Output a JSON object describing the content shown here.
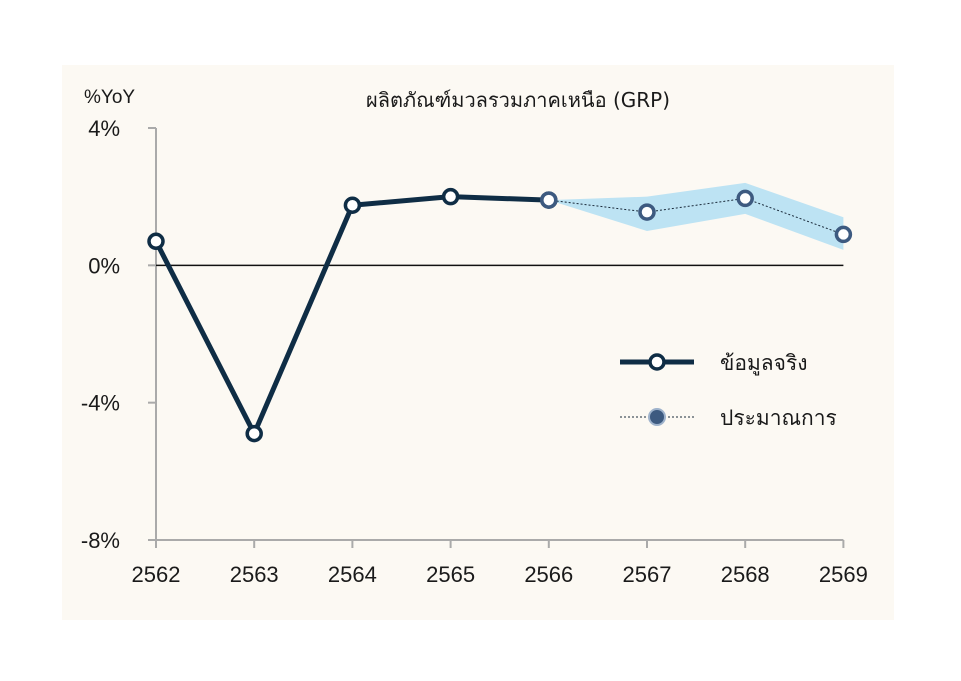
{
  "chart_data": {
    "type": "line",
    "title": "ผลิตภัณฑ์มวลรวมภาคเหนือ (GRP)",
    "ylabel": "%YoY",
    "xlabel": "",
    "x": [
      "2562",
      "2563",
      "2564",
      "2565",
      "2566",
      "2567",
      "2568",
      "2569"
    ],
    "ylim": [
      -8,
      4
    ],
    "yticks": [
      4,
      0,
      -4,
      -8
    ],
    "ytick_labels": [
      "4%",
      "0%",
      "-4%",
      "-8%"
    ],
    "grid": false,
    "legend_position": "right",
    "series": [
      {
        "name": "ข้อมูลจริง",
        "x": [
          "2562",
          "2563",
          "2564",
          "2565",
          "2566"
        ],
        "values": [
          0.7,
          -4.9,
          1.75,
          2.0,
          1.9
        ],
        "style": "solid-thick",
        "color": "#0f2d45"
      },
      {
        "name": "ประมาณการ",
        "x": [
          "2566",
          "2567",
          "2568",
          "2569"
        ],
        "values": [
          1.9,
          1.55,
          1.95,
          0.9
        ],
        "style": "dotted",
        "color": "#3d5a80",
        "band_low": [
          1.9,
          1.0,
          1.5,
          0.45
        ],
        "band_high": [
          1.9,
          2.0,
          2.4,
          1.4
        ],
        "band_color": "#bde3f3"
      }
    ],
    "colors": {
      "panel_bg": "#fcf9f3",
      "axis": "#aaaaaa",
      "zero_line": "#111111"
    }
  }
}
